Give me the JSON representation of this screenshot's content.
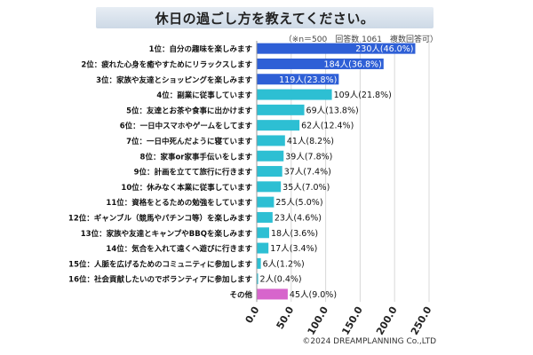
{
  "title": "休日の過ごし方を教えてください。",
  "subtitle": "（※n＝500　回答数 1061　複数回答可）",
  "footer": "©2024 DREAMPLANNING Co.,LTD",
  "colors": {
    "top3": "#2e5fd6",
    "middle": "#2dbfd3",
    "other": "#d765cc",
    "grid": "#d8d8d8"
  },
  "chart_data": {
    "type": "bar",
    "orientation": "horizontal",
    "categories": [
      "1位：自分の趣味を楽しみます",
      "2位：疲れた心身を癒やすためにリラックスします",
      "3位：家族や友達とショッピングを楽しみます",
      "4位：副業に従事しています",
      "5位：友達とお茶や食事に出かけます",
      "6位：一日中スマホやゲームをしてます",
      "7位：一日中死んだように寝ています",
      "8位：家事or家事手伝いをします",
      "9位：計画を立てて旅行に行きます",
      "10位：休みなく本業に従事しています",
      "11位：資格をとるための勉強をしています",
      "12位：ギャンブル（競馬やパチンコ等）を楽しみます",
      "13位：家族や友達とキャンプやBBQを楽しみます",
      "14位：気合を入れて遠くへ遊びに行きます",
      "15位：人脈を広げるためのコミュニティに参加します",
      "16位：社会貢献したいのでボランティアに参加します",
      "その他"
    ],
    "values": [
      230,
      184,
      119,
      109,
      69,
      62,
      41,
      39,
      37,
      35,
      25,
      23,
      18,
      17,
      6,
      2,
      45
    ],
    "data_labels": [
      "230人(46.0%)",
      "184人(36.8%)",
      "119人(23.8%)",
      "109人(21.8%)",
      "69人(13.8%)",
      "62人(12.4%)",
      "41人(8.2%)",
      "39人(7.8%)",
      "37人(7.4%)",
      "35人(7.0%)",
      "25人(5.0%)",
      "23人(4.6%)",
      "18人(3.6%)",
      "17人(3.4%)",
      "6人(1.2%)",
      "2人(0.4%)",
      "45人(9.0%)"
    ],
    "groups": [
      "top3",
      "top3",
      "top3",
      "middle",
      "middle",
      "middle",
      "middle",
      "middle",
      "middle",
      "middle",
      "middle",
      "middle",
      "middle",
      "middle",
      "middle",
      "middle",
      "other"
    ],
    "xlim": [
      0,
      250
    ],
    "ticks": [
      0,
      50,
      100,
      150,
      200,
      250
    ],
    "tick_labels": [
      "0.0",
      "50.0",
      "100.0",
      "150.0",
      "200.0",
      "250.0"
    ],
    "grid": true
  }
}
